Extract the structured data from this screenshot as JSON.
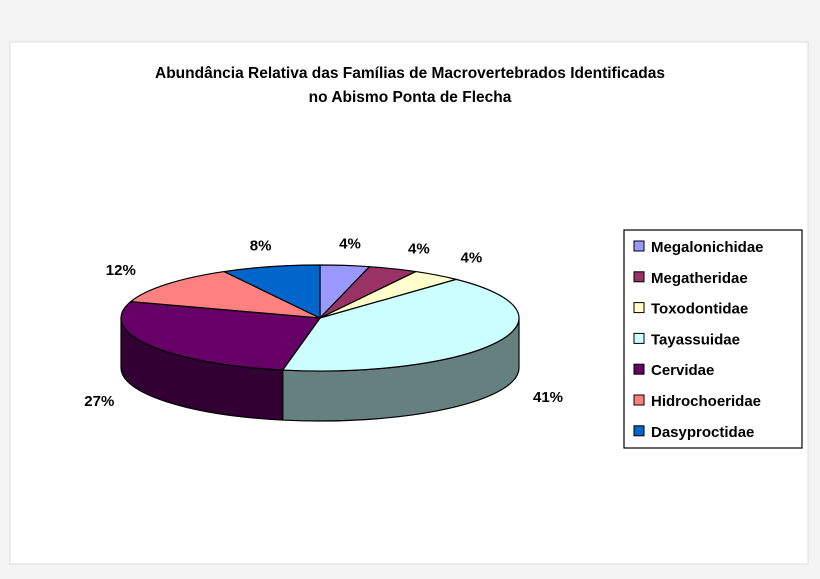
{
  "chart_data": {
    "type": "pie",
    "title": [
      "Abundância Relativa das Famílias de Macrovertebrados Identificadas",
      "no Abismo Ponta de Flecha"
    ],
    "legend_position": "right",
    "slices": [
      {
        "name": "Megalonichidae",
        "value": 4,
        "label": "4%",
        "color": "#9999ff",
        "side_color": "#5c5c99"
      },
      {
        "name": "Megatheridae",
        "value": 4,
        "label": "4%",
        "color": "#993366",
        "side_color": "#5c1f3d"
      },
      {
        "name": "Toxodontidae",
        "value": 4,
        "label": "4%",
        "color": "#ffffcc",
        "side_color": "#99997a"
      },
      {
        "name": "Tayassuidae",
        "value": 41,
        "label": "41%",
        "color": "#ccffff",
        "side_color": "#668080"
      },
      {
        "name": "Cervidae",
        "value": 27,
        "label": "27%",
        "color": "#660066",
        "side_color": "#330033"
      },
      {
        "name": "Hidrochoeridae",
        "value": 12,
        "label": "12%",
        "color": "#ff8080",
        "side_color": "#994d4d"
      },
      {
        "name": "Dasyproctidae",
        "value": 8,
        "label": "8%",
        "color": "#0066cc",
        "side_color": "#003d7a"
      }
    ]
  }
}
